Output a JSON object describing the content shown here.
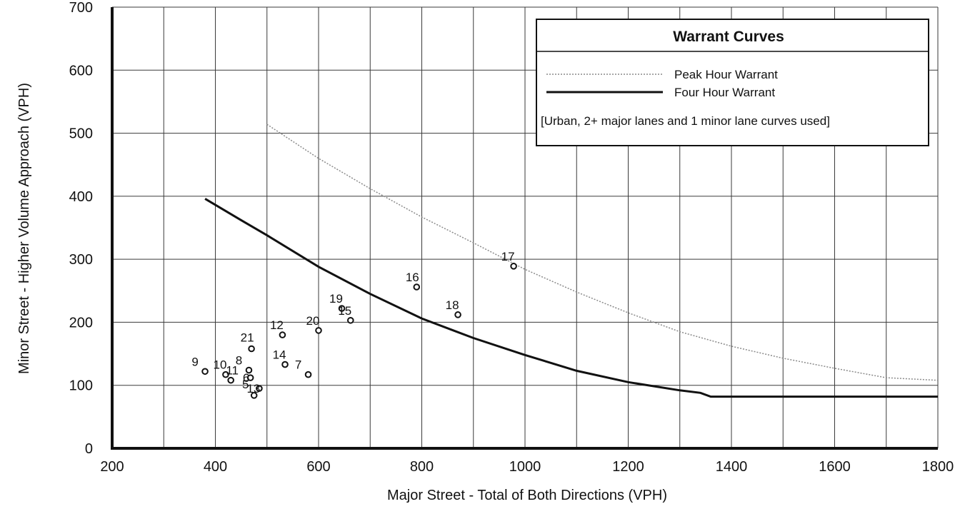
{
  "chart_data": {
    "type": "scatter",
    "title": "",
    "xlabel": "Major Street - Total of Both Directions (VPH)",
    "ylabel": "Minor Street - Higher Volume Approach (VPH)",
    "xlim": [
      200,
      1800
    ],
    "ylim": [
      0,
      700
    ],
    "x_ticks": [
      "200",
      "400",
      "600",
      "800",
      "1000",
      "1200",
      "1400",
      "1600",
      "1800"
    ],
    "y_ticks": [
      "0",
      "100",
      "200",
      "300",
      "400",
      "500",
      "600",
      "700"
    ],
    "grid": true,
    "points": [
      {
        "label": "9",
        "x": 380,
        "y": 122
      },
      {
        "label": "10",
        "x": 420,
        "y": 117
      },
      {
        "label": "11",
        "x": 430,
        "y": 108
      },
      {
        "label": "8",
        "x": 465,
        "y": 124
      },
      {
        "label": "6",
        "x": 468,
        "y": 112
      },
      {
        "label": "21",
        "x": 470,
        "y": 158
      },
      {
        "label": "13",
        "x": 485,
        "y": 95
      },
      {
        "label": "5",
        "x": 475,
        "y": 84
      },
      {
        "label": "12",
        "x": 530,
        "y": 180
      },
      {
        "label": "14",
        "x": 535,
        "y": 133
      },
      {
        "label": "7",
        "x": 580,
        "y": 117
      },
      {
        "label": "20",
        "x": 600,
        "y": 187
      },
      {
        "label": "19",
        "x": 645,
        "y": 222
      },
      {
        "label": "15",
        "x": 662,
        "y": 203
      },
      {
        "label": "16",
        "x": 790,
        "y": 256
      },
      {
        "label": "18",
        "x": 870,
        "y": 212
      },
      {
        "label": "17",
        "x": 978,
        "y": 289
      }
    ],
    "curves": [
      {
        "name": "Peak Hour Warrant",
        "style": "dotted-gray",
        "points": [
          [
            500,
            514
          ],
          [
            600,
            460
          ],
          [
            700,
            412
          ],
          [
            800,
            367
          ],
          [
            900,
            326
          ],
          [
            1000,
            284
          ],
          [
            1100,
            248
          ],
          [
            1200,
            215
          ],
          [
            1300,
            185
          ],
          [
            1400,
            162
          ],
          [
            1500,
            143
          ],
          [
            1600,
            127
          ],
          [
            1700,
            112
          ],
          [
            1800,
            108
          ]
        ]
      },
      {
        "name": "Four Hour Warrant",
        "style": "solid-black",
        "points": [
          [
            380,
            396
          ],
          [
            450,
            362
          ],
          [
            500,
            338
          ],
          [
            600,
            288
          ],
          [
            700,
            245
          ],
          [
            800,
            206
          ],
          [
            900,
            175
          ],
          [
            1000,
            148
          ],
          [
            1100,
            123
          ],
          [
            1200,
            105
          ],
          [
            1300,
            92
          ],
          [
            1340,
            88
          ],
          [
            1360,
            82
          ],
          [
            1800,
            82
          ]
        ]
      }
    ],
    "legend": {
      "title": "Warrant Curves",
      "entries": [
        {
          "name": "Peak Hour Warrant",
          "style": "dotted-gray"
        },
        {
          "name": "Four Hour Warrant",
          "style": "solid-black"
        }
      ],
      "note": "[Urban,  2+ major lanes and 1 minor lane curves used]",
      "position": "top-right"
    },
    "colors": {
      "axis": "#111111",
      "grid": "#3a3a3a",
      "peak_curve": "#8a8a8a",
      "four_hour_curve": "#111111"
    }
  }
}
